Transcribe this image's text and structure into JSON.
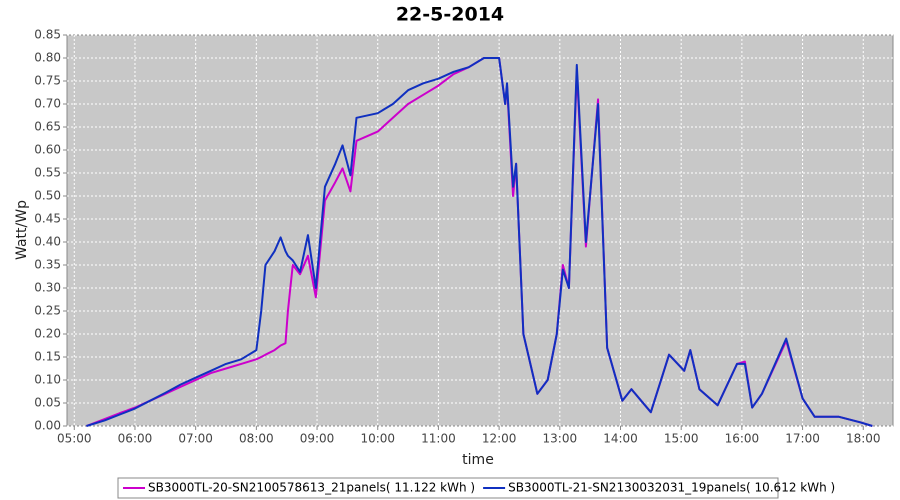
{
  "chart_data": {
    "type": "line",
    "title": "22-5-2014",
    "x_label": "time",
    "y_label": "Watt/Wp",
    "xlim": [
      4.88,
      18.49
    ],
    "xticks": [
      {
        "value": 5,
        "label": "05:00"
      },
      {
        "value": 6,
        "label": "06:00"
      },
      {
        "value": 7,
        "label": "07:00"
      },
      {
        "value": 8,
        "label": "08:00"
      },
      {
        "value": 9,
        "label": "09:00"
      },
      {
        "value": 10,
        "label": "10:00"
      },
      {
        "value": 11,
        "label": "11:00"
      },
      {
        "value": 12,
        "label": "12:00"
      },
      {
        "value": 13,
        "label": "13:00"
      },
      {
        "value": 14,
        "label": "14:00"
      },
      {
        "value": 15,
        "label": "15:00"
      },
      {
        "value": 16,
        "label": "16:00"
      },
      {
        "value": 17,
        "label": "17:00"
      },
      {
        "value": 18,
        "label": "18:00"
      }
    ],
    "ylim": [
      0,
      0.85
    ],
    "yticks": [
      {
        "value": 0,
        "label": "0.00"
      },
      0.05,
      {
        "value": 0.1,
        "label": "0.10"
      },
      0.15,
      {
        "value": 0.2,
        "label": "0.20"
      },
      0.25,
      {
        "value": 0.3,
        "label": "0.30"
      },
      0.35,
      {
        "value": 0.4,
        "label": "0.40"
      },
      0.45,
      {
        "value": 0.5,
        "label": "0.50"
      },
      0.55,
      {
        "value": 0.6,
        "label": "0.60"
      },
      0.65,
      {
        "value": 0.7,
        "label": "0.70"
      },
      0.75,
      {
        "value": 0.8,
        "label": "0.80"
      },
      0.85
    ],
    "grid": true,
    "legend": "bottom",
    "x": [
      5.2,
      5.5,
      5.75,
      6.0,
      6.25,
      6.5,
      6.75,
      7.0,
      7.25,
      7.5,
      7.75,
      8.0,
      8.08,
      8.15,
      8.3,
      8.4,
      8.48,
      8.52,
      8.6,
      8.72,
      8.85,
      8.98,
      9.13,
      9.3,
      9.42,
      9.55,
      9.65,
      10.0,
      10.25,
      10.5,
      10.75,
      11.0,
      11.25,
      11.5,
      11.75,
      12.0,
      12.1,
      12.13,
      12.23,
      12.28,
      12.4,
      12.63,
      12.8,
      12.95,
      13.05,
      13.15,
      13.28,
      13.43,
      13.63,
      13.78,
      14.03,
      14.18,
      14.5,
      14.8,
      15.05,
      15.15,
      15.3,
      15.6,
      15.92,
      16.05,
      16.17,
      16.33,
      16.73,
      17.0,
      17.2,
      17.6,
      17.95,
      18.15
    ],
    "series": [
      {
        "name": "SB3000TL-20-SN2100578613_21panels( 11.122 kWh )",
        "color": "#cc00cc",
        "values": [
          0,
          0.015,
          0.028,
          0.04,
          0.055,
          0.07,
          0.085,
          0.1,
          0.115,
          0.125,
          0.135,
          0.145,
          0.15,
          0.155,
          0.165,
          0.175,
          0.18,
          0.25,
          0.35,
          0.33,
          0.37,
          0.28,
          0.49,
          0.53,
          0.56,
          0.51,
          0.62,
          0.64,
          0.67,
          0.7,
          0.72,
          0.74,
          0.765,
          0.78,
          0.8,
          0.8,
          0.7,
          0.74,
          0.5,
          0.57,
          0.2,
          0.07,
          0.1,
          0.2,
          0.35,
          0.3,
          0.77,
          0.39,
          0.71,
          0.17,
          0.055,
          0.08,
          0.03,
          0.155,
          0.12,
          0.165,
          0.08,
          0.045,
          0.135,
          0.14,
          0.04,
          0.07,
          0.185,
          0.06,
          0.02,
          0.02,
          0.008,
          0
        ]
      },
      {
        "name": "SB3000TL-21-SN2130032031_19panels( 10.612 kWh )",
        "color": "#1030c0",
        "values": [
          0,
          0.012,
          0.025,
          0.038,
          0.055,
          0.072,
          0.09,
          0.105,
          0.12,
          0.135,
          0.145,
          0.165,
          0.25,
          0.35,
          0.38,
          0.41,
          0.38,
          0.37,
          0.36,
          0.335,
          0.415,
          0.3,
          0.52,
          0.57,
          0.61,
          0.545,
          0.67,
          0.68,
          0.7,
          0.73,
          0.745,
          0.755,
          0.77,
          0.78,
          0.8,
          0.8,
          0.7,
          0.745,
          0.52,
          0.57,
          0.2,
          0.07,
          0.1,
          0.2,
          0.34,
          0.3,
          0.785,
          0.4,
          0.7,
          0.17,
          0.055,
          0.08,
          0.03,
          0.155,
          0.12,
          0.165,
          0.08,
          0.045,
          0.135,
          0.135,
          0.04,
          0.07,
          0.19,
          0.06,
          0.02,
          0.02,
          0.008,
          0
        ]
      }
    ]
  }
}
